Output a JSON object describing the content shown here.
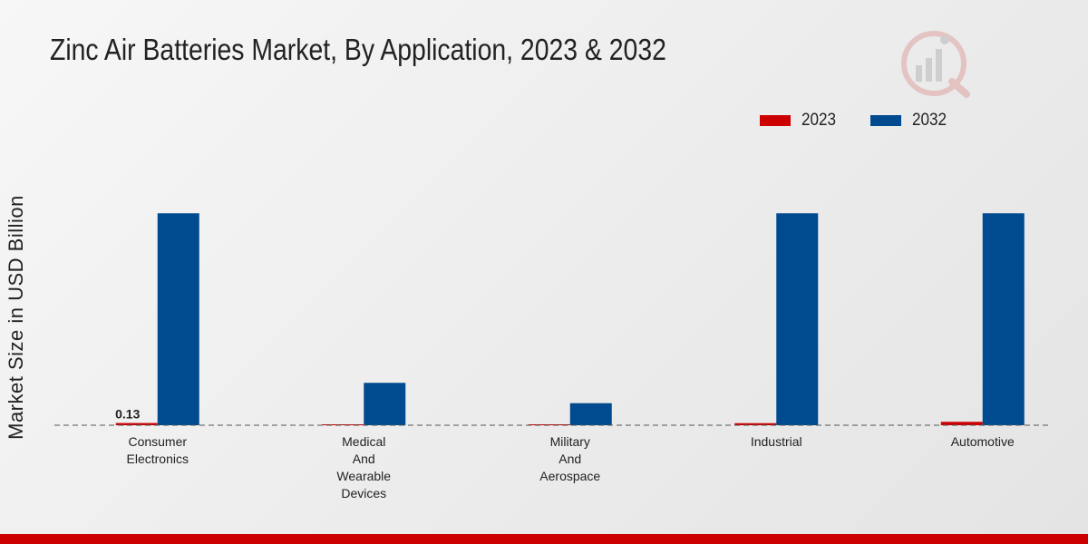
{
  "header": {
    "title": "Zinc Air Batteries Market, By Application, 2023 & 2032"
  },
  "colors": {
    "series_2023": "#cc0000",
    "series_2032": "#004a8f",
    "bottom_bar": "#cc0000"
  },
  "chart_data": {
    "type": "bar",
    "title": "Zinc Air Batteries Market, By Application, 2023 & 2032",
    "xlabel": "",
    "ylabel": "Market Size in USD Billion",
    "categories": [
      [
        "Consumer",
        "Electronics"
      ],
      [
        "Medical",
        "And",
        "Wearable",
        "Devices"
      ],
      [
        "Military",
        "And",
        "Aerospace"
      ],
      [
        "Industrial"
      ],
      [
        "Automotive"
      ]
    ],
    "series": [
      {
        "name": "2023",
        "values": [
          0.13,
          0.05,
          0.02,
          0.12,
          0.2
        ]
      },
      {
        "name": "2032",
        "values": [
          12.5,
          2.5,
          1.3,
          12.5,
          12.5
        ]
      }
    ],
    "data_labels": [
      {
        "series": 0,
        "index": 0,
        "text": "0.13"
      }
    ],
    "ylim": [
      0,
      20
    ],
    "grid": false,
    "legend": "top-right"
  }
}
